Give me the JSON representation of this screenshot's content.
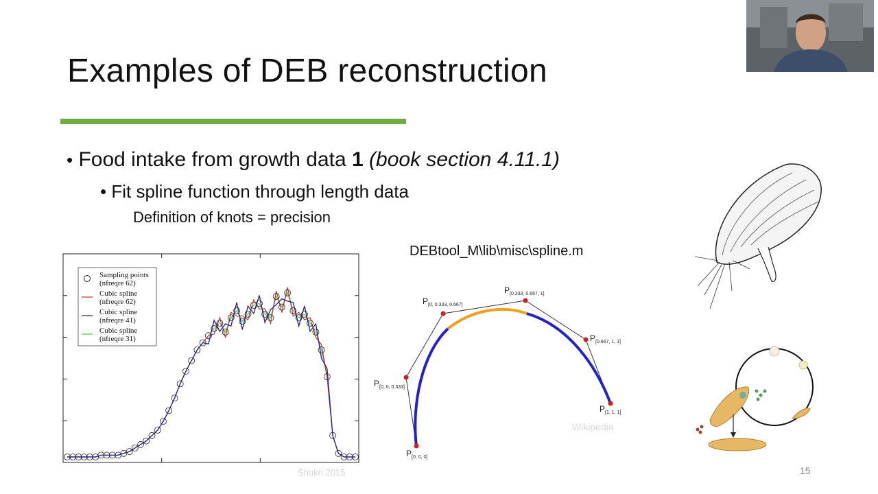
{
  "slide": {
    "title": "Examples of DEB reconstruction",
    "bullet1": {
      "marker": "•",
      "text": "Food intake from growth data ",
      "num": "1",
      "ref": "(book section 4.11.1)"
    },
    "bullet2": {
      "marker": "•",
      "text": "Fit spline function through length data"
    },
    "bullet3": "Definition of knots = precision",
    "code_path": "DEBtool_M\\lib\\misc\\spline.m",
    "credit_left": "Shukri 2015",
    "credit_right": "Wikipedia",
    "page_number": "15"
  },
  "legend": {
    "entries": [
      {
        "line1": "Sampling points",
        "line2": "(nfreqre 62)",
        "color": "#222222"
      },
      {
        "line1": "Cubic spline",
        "line2": "(nfreqre 62)",
        "color": "#cc3333"
      },
      {
        "line1": "Cubic spline",
        "line2": "(nfreqre 41)",
        "color": "#2a2a9a"
      },
      {
        "line1": "Cubic spline",
        "line2": "(nfreqre 31)",
        "color": "#55cc55"
      }
    ]
  },
  "bezier": {
    "points": [
      {
        "main": "P",
        "sub": "[0, 0, 0]"
      },
      {
        "main": "P",
        "sub": "[0, 0, 0.333]"
      },
      {
        "main": "P",
        "sub": "[0, 0.333, 0.667]"
      },
      {
        "main": "P",
        "sub": "[0.333, 0.667, 1]"
      },
      {
        "main": "P",
        "sub": "[0.667, 1, 1]"
      },
      {
        "main": "P",
        "sub": "[1, 1, 1]"
      }
    ],
    "colors": {
      "outer": "#2222c8",
      "middle": "#f0a020",
      "control": "#cc2222"
    }
  },
  "chart_data": {
    "type": "scatter",
    "legend_position": "top-left",
    "sampling_points": [
      0.0,
      0.0,
      0.0,
      0.0,
      0.0,
      0.0,
      0.01,
      0.01,
      0.01,
      0.01,
      0.02,
      0.03,
      0.05,
      0.07,
      0.09,
      0.12,
      0.15,
      0.2,
      0.26,
      0.33,
      0.41,
      0.48,
      0.54,
      0.6,
      0.64,
      0.68,
      0.72,
      0.75,
      0.7,
      0.78,
      0.82,
      0.76,
      0.8,
      0.85,
      0.86,
      0.8,
      0.78,
      0.9,
      0.84,
      0.92,
      0.82,
      0.78,
      0.8,
      0.75,
      0.7,
      0.6,
      0.45,
      0.12,
      0.02,
      0.0,
      0.0,
      0.0
    ]
  }
}
